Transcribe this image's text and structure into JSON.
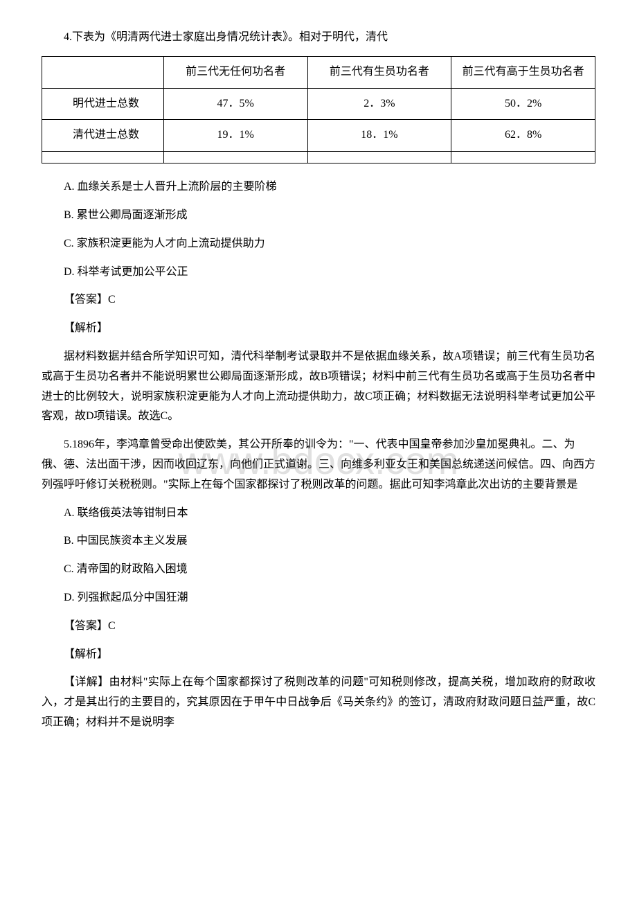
{
  "watermark": "www.bdocx.com",
  "q4": {
    "intro": "4.下表为《明清两代进士家庭出身情况统计表》。相对于明代，清代",
    "table": {
      "headers": [
        "",
        "前三代无任何功名者",
        "前三代有生员功名者",
        "前三代有高于生员功名者"
      ],
      "rows": [
        {
          "label": "明代进士总数",
          "c1": "47．5%",
          "c2": "2．3%",
          "c3": "50．2%"
        },
        {
          "label": "清代进士总数",
          "c1": "19．1%",
          "c2": "18．1%",
          "c3": "62．8%"
        }
      ]
    },
    "options": {
      "A": "A. 血缘关系是士人晋升上流阶层的主要阶梯",
      "B": "B. 累世公卿局面逐渐形成",
      "C": "C. 家族积淀更能为人才向上流动提供助力",
      "D": "D. 科举考试更加公平公正"
    },
    "answer": "【答案】C",
    "explain_label": "【解析】",
    "explanation": "据材料数据并结合所学知识可知，清代科举制考试录取并不是依据血缘关系，故A项错误；前三代有生员功名或高于生员功名者并不能说明累世公卿局面逐渐形成，故B项错误；材料中前三代有生员功名或高于生员功名者中进士的比例较大，说明家族积淀更能为人才向上流动提供助力，故C项正确；材料数据无法说明科举考试更加公平客观，故D项错误。故选C。"
  },
  "q5": {
    "intro": "5.1896年，李鸿章曾受命出使欧美，其公开所奉的训令为：\"一、代表中国皇帝参加沙皇加冕典礼。二、为俄、德、法出面干涉，因而收回辽东，向他们正式道谢。三、向维多利亚女王和美国总统递送问候信。四、向西方列强呼吁修订关税税则。\"实际上在每个国家都探讨了税则改革的问题。据此可知李鸿章此次出访的主要背景是",
    "options": {
      "A": "A. 联络俄英法等钳制日本",
      "B": "B. 中国民族资本主义发展",
      "C": "C. 清帝国的财政陷入困境",
      "D": "D. 列强掀起瓜分中国狂潮"
    },
    "answer": "【答案】C",
    "explain_label": "【解析】",
    "explanation": "【详解】由材料\"实际上在每个国家都探讨了税则改革的问题\"可知税则修改，提高关税，增加政府的财政收入，才是其出行的主要目的，究其原因在于甲午中日战争后《马关条约》的签订，清政府财政问题日益严重，故C项正确；材料并不是说明李"
  }
}
